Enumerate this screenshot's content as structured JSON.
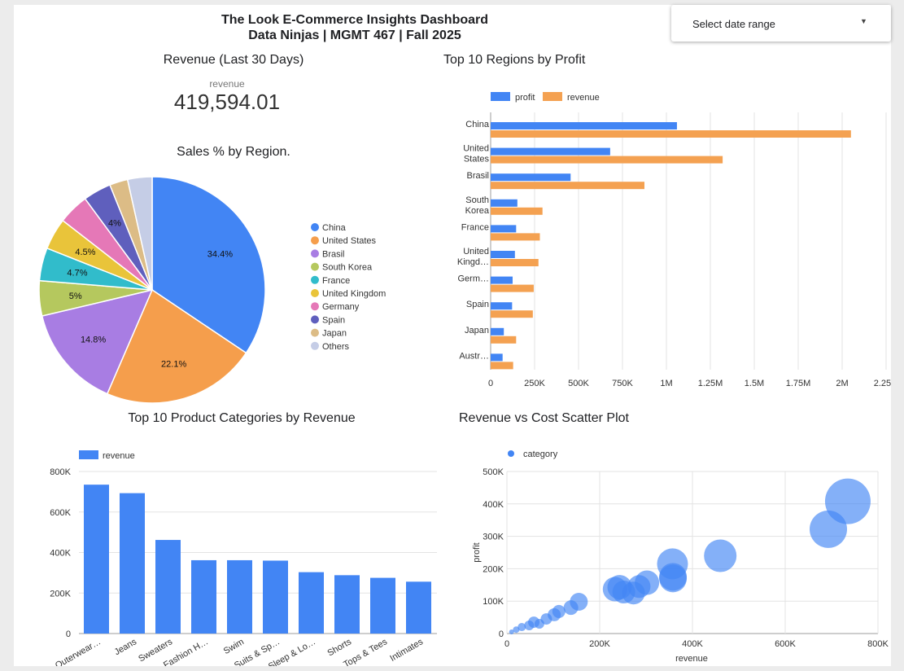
{
  "header": {
    "title": "The Look E-Commerce Insights Dashboard",
    "subtitle": "Data Ninjas | MGMT 467 | Fall 2025"
  },
  "date_picker": {
    "label": "Select date range"
  },
  "kpi": {
    "title": "Revenue (Last 30 Days)",
    "label": "revenue",
    "value": "419,594.01"
  },
  "colors": {
    "blue": "#4285f4",
    "orange": "#f4a151"
  },
  "chart_data": [
    {
      "id": "pie",
      "type": "pie",
      "title": "Sales % by Region.",
      "slices": [
        {
          "name": "China",
          "value": 34.4,
          "label": "34.4%",
          "color": "#4285f4"
        },
        {
          "name": "United States",
          "value": 22.1,
          "label": "22.1%",
          "color": "#f59e4c"
        },
        {
          "name": "Brasil",
          "value": 14.8,
          "label": "14.8%",
          "color": "#a87de3"
        },
        {
          "name": "South Korea",
          "value": 5.0,
          "label": "5%",
          "color": "#b5c85e"
        },
        {
          "name": "France",
          "value": 4.7,
          "label": "4.7%",
          "color": "#31bccb"
        },
        {
          "name": "United Kingdom",
          "value": 4.5,
          "label": "4.5%",
          "color": "#e9c43a"
        },
        {
          "name": "Germany",
          "value": 4.4,
          "label": "",
          "color": "#e578b7"
        },
        {
          "name": "Spain",
          "value": 4.0,
          "label": "4%",
          "color": "#5f5fbd"
        },
        {
          "name": "Japan",
          "value": 2.6,
          "label": "",
          "color": "#dcbc86"
        },
        {
          "name": "Others",
          "value": 3.5,
          "label": "",
          "color": "#c5cde6"
        }
      ]
    },
    {
      "id": "hbar",
      "type": "bar",
      "orientation": "horizontal",
      "title": "Top 10 Regions by Profit",
      "categories": [
        [
          "China"
        ],
        [
          "United",
          "States"
        ],
        [
          "Brasil"
        ],
        [
          "South",
          "Korea"
        ],
        [
          "France"
        ],
        [
          "United",
          "Kingd…"
        ],
        [
          "Germ…"
        ],
        [
          "Spain"
        ],
        [
          "Japan"
        ],
        [
          "Austr…"
        ]
      ],
      "series": [
        {
          "name": "profit",
          "values": [
            1060000,
            680000,
            455000,
            152000,
            145000,
            138000,
            125000,
            122000,
            75000,
            68000
          ]
        },
        {
          "name": "revenue",
          "values": [
            2050000,
            1320000,
            875000,
            295000,
            280000,
            272000,
            245000,
            240000,
            145000,
            128000
          ]
        }
      ],
      "xlim": [
        0,
        2250000
      ],
      "ticks": [
        0,
        250000,
        500000,
        750000,
        1000000,
        1250000,
        1500000,
        1750000,
        2000000,
        2250000
      ],
      "tick_labels": [
        "0",
        "250K",
        "500K",
        "750K",
        "1M",
        "1.25M",
        "1.5M",
        "1.75M",
        "2M",
        "2.25M"
      ],
      "legend": "top-left",
      "grid": true
    },
    {
      "id": "vbar",
      "type": "bar",
      "orientation": "vertical",
      "title": "Top 10 Product Categories by Revenue",
      "categories": [
        "Outerwear…",
        "Jeans",
        "Sweaters",
        "Fashion H…",
        "Swim",
        "Suits & Sp…",
        "Sleep & Lo…",
        "Shorts",
        "Tops & Tees",
        "Intimates"
      ],
      "series": [
        {
          "name": "revenue",
          "values": [
            735000,
            693000,
            462000,
            362000,
            362000,
            360000,
            303000,
            288000,
            275000,
            256000
          ]
        }
      ],
      "ylim": [
        0,
        800000
      ],
      "ticks": [
        0,
        200000,
        400000,
        600000,
        800000
      ],
      "tick_labels": [
        "0",
        "200K",
        "400K",
        "600K",
        "800K"
      ],
      "legend": "top-left",
      "grid": true
    },
    {
      "id": "scatter",
      "type": "scatter",
      "title": "Revenue vs Cost Scatter Plot",
      "xlabel": "revenue",
      "ylabel": "profit",
      "xlim": [
        0,
        800000
      ],
      "ylim": [
        0,
        500000
      ],
      "xticks": [
        0,
        200000,
        400000,
        600000,
        800000
      ],
      "xtick_labels": [
        "0",
        "200K",
        "400K",
        "600K",
        "800K"
      ],
      "yticks": [
        0,
        100000,
        200000,
        300000,
        400000,
        500000
      ],
      "ytick_labels": [
        "0",
        "100K",
        "200K",
        "300K",
        "400K",
        "500K"
      ],
      "series": [
        {
          "name": "category",
          "points": [
            [
              10000,
              5000,
              3
            ],
            [
              20000,
              12000,
              4
            ],
            [
              32000,
              20000,
              5
            ],
            [
              48000,
              25000,
              6
            ],
            [
              58000,
              35000,
              7
            ],
            [
              70000,
              30000,
              6
            ],
            [
              85000,
              45000,
              7
            ],
            [
              102000,
              58000,
              8
            ],
            [
              112000,
              68000,
              8
            ],
            [
              138000,
              80000,
              9
            ],
            [
              155000,
              98000,
              11
            ],
            [
              233000,
              137000,
              15
            ],
            [
              243000,
              143000,
              15
            ],
            [
              252000,
              128000,
              14
            ],
            [
              273000,
              125000,
              14
            ],
            [
              285000,
              145000,
              14
            ],
            [
              302000,
              157000,
              15
            ],
            [
              357000,
              215000,
              19
            ],
            [
              358000,
              175000,
              17
            ],
            [
              358000,
              170000,
              17
            ],
            [
              460000,
              240000,
              20
            ],
            [
              693000,
              322000,
              23
            ],
            [
              735000,
              408000,
              28
            ]
          ]
        }
      ],
      "legend": "top-left",
      "grid": true
    }
  ]
}
